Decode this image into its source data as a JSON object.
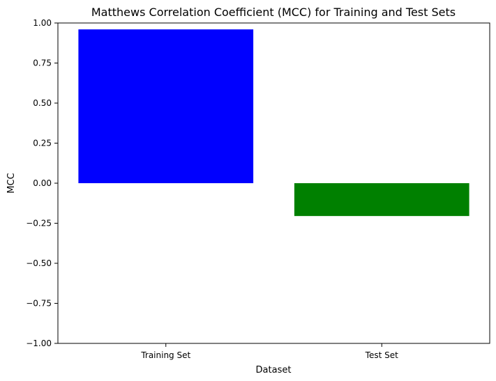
{
  "chart_data": {
    "type": "bar",
    "title": "Matthews Correlation Coefficient (MCC) for Training and Test Sets",
    "xlabel": "Dataset",
    "ylabel": "MCC",
    "categories": [
      "Training Set",
      "Test Set"
    ],
    "values": [
      0.96,
      -0.205
    ],
    "colors": [
      "#0000ff",
      "#008000"
    ],
    "ylim": [
      -1.0,
      1.0
    ],
    "yticks": [
      -1.0,
      -0.75,
      -0.5,
      -0.25,
      0.0,
      0.25,
      0.5,
      0.75,
      1.0
    ],
    "ytick_labels": [
      "−1.00",
      "−0.75",
      "−0.50",
      "−0.25",
      "0.00",
      "0.25",
      "0.50",
      "0.75",
      "1.00"
    ],
    "grid": false,
    "legend": "none"
  }
}
